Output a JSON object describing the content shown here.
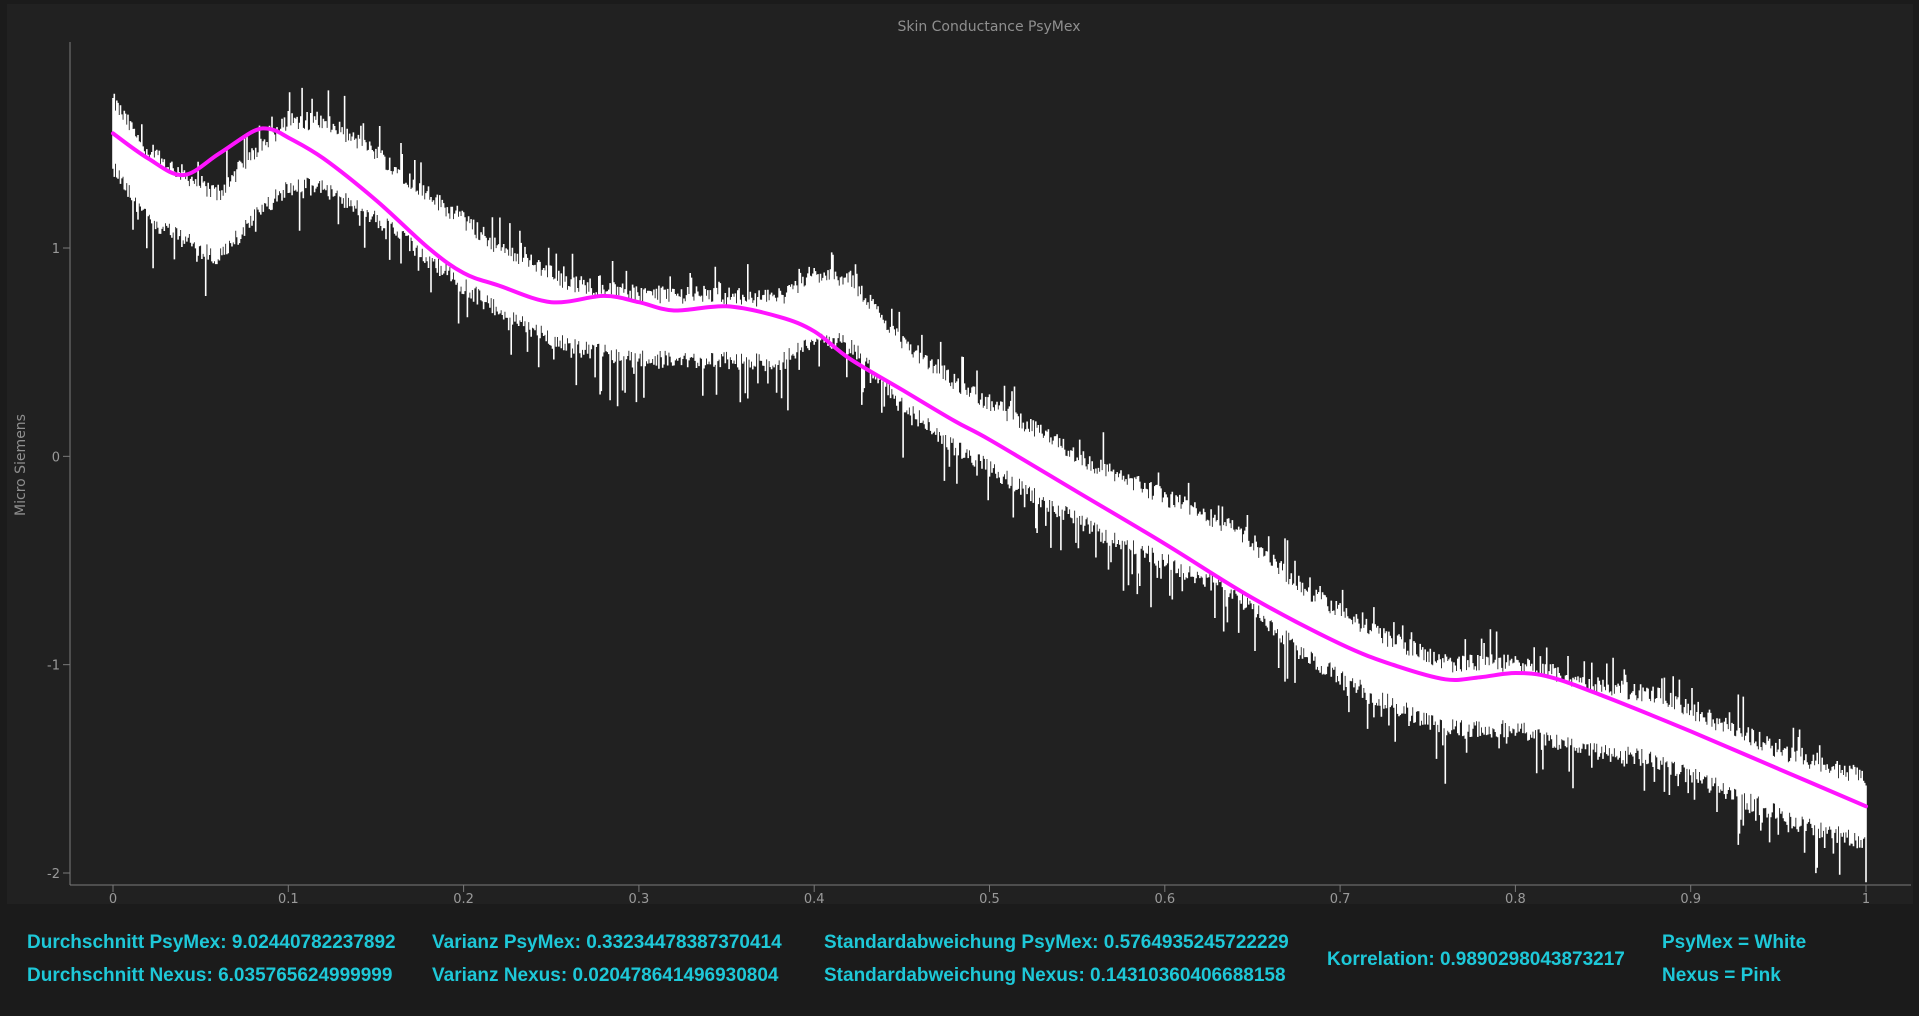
{
  "chart_data": {
    "type": "line",
    "title": "Skin Conductance PsyMex",
    "xlabel": "",
    "ylabel": "Micro Siemens",
    "xlim": [
      0,
      1
    ],
    "ylim": [
      -2,
      2
    ],
    "x_ticks": [
      "0",
      "0.1",
      "0.2",
      "0.3",
      "0.4",
      "0.5",
      "0.6",
      "0.7",
      "0.8",
      "0.9",
      "1"
    ],
    "y_ticks": [
      "1",
      "0",
      "-1",
      "-2"
    ],
    "grid": false,
    "legend": "none",
    "series": [
      {
        "color": "#ffffff",
        "style": "noisy-band",
        "x": [
          0,
          0.02,
          0.04,
          0.06,
          0.08,
          0.1,
          0.12,
          0.15,
          0.18,
          0.22,
          0.26,
          0.3,
          0.34,
          0.38,
          0.4,
          0.42,
          0.45,
          0.48,
          0.52,
          0.56,
          0.6,
          0.64,
          0.68,
          0.72,
          0.76,
          0.8,
          0.84,
          0.88,
          0.92,
          0.96,
          1.0
        ],
        "values": [
          1.55,
          1.3,
          1.2,
          1.1,
          1.3,
          1.45,
          1.45,
          1.3,
          1.1,
          0.85,
          0.68,
          0.62,
          0.62,
          0.6,
          0.72,
          0.7,
          0.4,
          0.2,
          0.0,
          -0.2,
          -0.35,
          -0.5,
          -0.8,
          -1.0,
          -1.15,
          -1.15,
          -1.25,
          -1.3,
          -1.45,
          -1.6,
          -1.7
        ],
        "spread": 0.25
      },
      {
        "color": "#ff14ff",
        "style": "smooth",
        "x": [
          0,
          0.02,
          0.04,
          0.06,
          0.08,
          0.09,
          0.1,
          0.12,
          0.15,
          0.18,
          0.2,
          0.22,
          0.25,
          0.28,
          0.3,
          0.32,
          0.35,
          0.38,
          0.4,
          0.42,
          0.45,
          0.48,
          0.5,
          0.55,
          0.6,
          0.65,
          0.7,
          0.73,
          0.76,
          0.78,
          0.8,
          0.82,
          0.85,
          0.9,
          0.95,
          1.0
        ],
        "values": [
          1.55,
          1.43,
          1.35,
          1.45,
          1.56,
          1.57,
          1.53,
          1.43,
          1.23,
          1.0,
          0.88,
          0.82,
          0.74,
          0.77,
          0.74,
          0.7,
          0.72,
          0.67,
          0.6,
          0.47,
          0.32,
          0.17,
          0.08,
          -0.17,
          -0.42,
          -0.68,
          -0.9,
          -1.0,
          -1.07,
          -1.06,
          -1.04,
          -1.06,
          -1.15,
          -1.32,
          -1.5,
          -1.68
        ]
      }
    ]
  },
  "stats": {
    "mean_psymex": "Durchschnitt PsyMex: 9.02440782237892",
    "mean_nexus": "Durchschnitt Nexus: 6.035765624999999",
    "var_psymex": "Varianz PsyMex: 0.33234478387370414",
    "var_nexus": "Varianz Nexus: 0.020478641496930804",
    "std_psymex": "Standardabweichung PsyMex: 0.5764935245722229",
    "std_nexus": "Standardabweichung Nexus: 0.14310360406688158",
    "correlation": "Korrelation: 0.9890298043873217",
    "legend_psymex": "PsyMex = White",
    "legend_nexus": "Nexus = Pink"
  },
  "colors": {
    "background": "#1b1b1b",
    "plot_background": "#212121",
    "stats_text": "#1ec8d8"
  }
}
